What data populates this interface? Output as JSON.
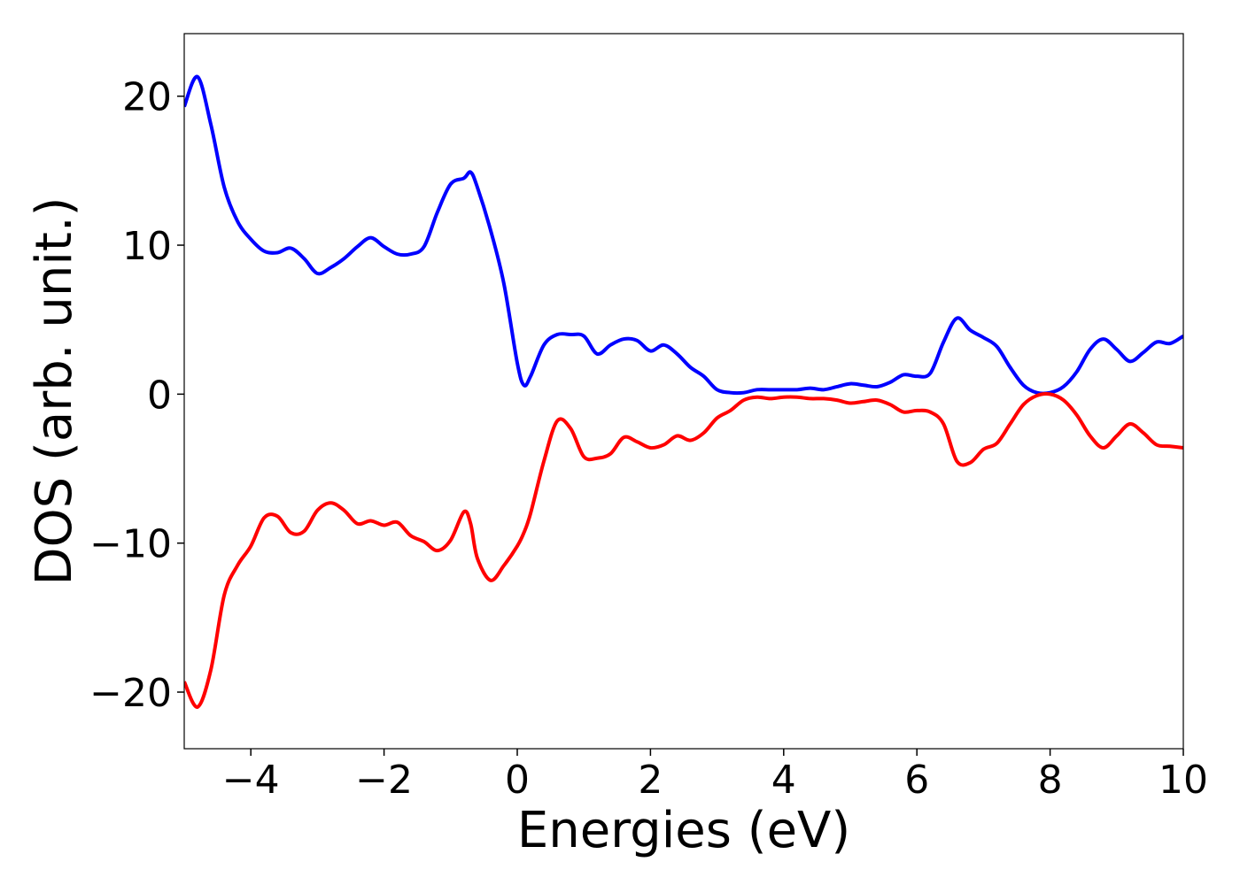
{
  "chart_data": {
    "type": "line",
    "xlabel": "Energies (eV)",
    "ylabel": "DOS (arb. unit.)",
    "x": [
      -5,
      -4.8,
      -4.6,
      -4.4,
      -4.2,
      -4,
      -3.8,
      -3.6,
      -3.4,
      -3.2,
      -3,
      -2.8,
      -2.6,
      -2.4,
      -2.2,
      -2,
      -1.8,
      -1.6,
      -1.4,
      -1.2,
      -1,
      -0.8,
      -0.7,
      -0.6,
      -0.4,
      -0.2,
      0,
      0.1,
      0.2,
      0.4,
      0.6,
      0.8,
      1,
      1.2,
      1.4,
      1.6,
      1.8,
      2,
      2.2,
      2.4,
      2.6,
      2.8,
      3,
      3.2,
      3.4,
      3.6,
      3.8,
      4,
      4.2,
      4.4,
      4.6,
      4.8,
      5,
      5.2,
      5.4,
      5.6,
      5.8,
      6,
      6.2,
      6.4,
      6.6,
      6.8,
      7,
      7.2,
      7.4,
      7.6,
      7.8,
      8,
      8.2,
      8.4,
      8.6,
      8.8,
      9,
      9.2,
      9.4,
      9.6,
      9.8,
      10
    ],
    "series": [
      {
        "color": "#0000ff",
        "values": [
          19.3,
          21.3,
          18.1,
          13.9,
          11.6,
          10.4,
          9.6,
          9.5,
          9.8,
          9.1,
          8.1,
          8.5,
          9.1,
          9.9,
          10.5,
          9.9,
          9.4,
          9.4,
          9.9,
          12.2,
          14.1,
          14.5,
          14.9,
          13.9,
          11.0,
          7.4,
          2.1,
          0.6,
          1.2,
          3.3,
          4.0,
          4.0,
          3.9,
          2.7,
          3.3,
          3.7,
          3.6,
          2.9,
          3.3,
          2.7,
          1.8,
          1.2,
          0.3,
          0.1,
          0.1,
          0.3,
          0.3,
          0.3,
          0.3,
          0.4,
          0.3,
          0.5,
          0.7,
          0.6,
          0.5,
          0.8,
          1.3,
          1.2,
          1.4,
          3.5,
          5.1,
          4.3,
          3.8,
          3.2,
          1.8,
          0.6,
          0.1,
          0.1,
          0.5,
          1.5,
          3.0,
          3.7,
          3.0,
          2.2,
          2.8,
          3.5,
          3.4,
          3.9
        ]
      },
      {
        "color": "#ff0000",
        "values": [
          -19.3,
          -21.0,
          -18.5,
          -13.5,
          -11.5,
          -10.2,
          -8.3,
          -8.2,
          -9.3,
          -9.2,
          -7.8,
          -7.3,
          -7.8,
          -8.7,
          -8.5,
          -8.8,
          -8.6,
          -9.5,
          -9.9,
          -10.5,
          -9.8,
          -7.9,
          -8.7,
          -11.0,
          -12.5,
          -11.5,
          -10.2,
          -9.3,
          -8.0,
          -4.5,
          -1.8,
          -2.3,
          -4.2,
          -4.3,
          -4.0,
          -2.9,
          -3.2,
          -3.6,
          -3.4,
          -2.8,
          -3.1,
          -2.6,
          -1.6,
          -1.1,
          -0.4,
          -0.2,
          -0.3,
          -0.2,
          -0.2,
          -0.3,
          -0.3,
          -0.4,
          -0.6,
          -0.5,
          -0.4,
          -0.7,
          -1.2,
          -1.1,
          -1.2,
          -2.0,
          -4.5,
          -4.6,
          -3.7,
          -3.3,
          -2.0,
          -0.7,
          -0.1,
          0.0,
          -0.4,
          -1.4,
          -2.8,
          -3.6,
          -2.8,
          -2.0,
          -2.6,
          -3.4,
          -3.5,
          -3.6
        ]
      }
    ],
    "xlim": [
      -5,
      10
    ],
    "xticks": [
      {
        "value": -4,
        "label": "−4"
      },
      {
        "value": -2,
        "label": "−2"
      },
      0,
      2,
      4,
      6,
      8,
      10
    ],
    "ylim": [
      -23.8,
      24.2
    ],
    "yticks": [
      {
        "value": -20,
        "label": "−20"
      },
      {
        "value": -10,
        "label": "−10"
      },
      0,
      10,
      20
    ]
  }
}
